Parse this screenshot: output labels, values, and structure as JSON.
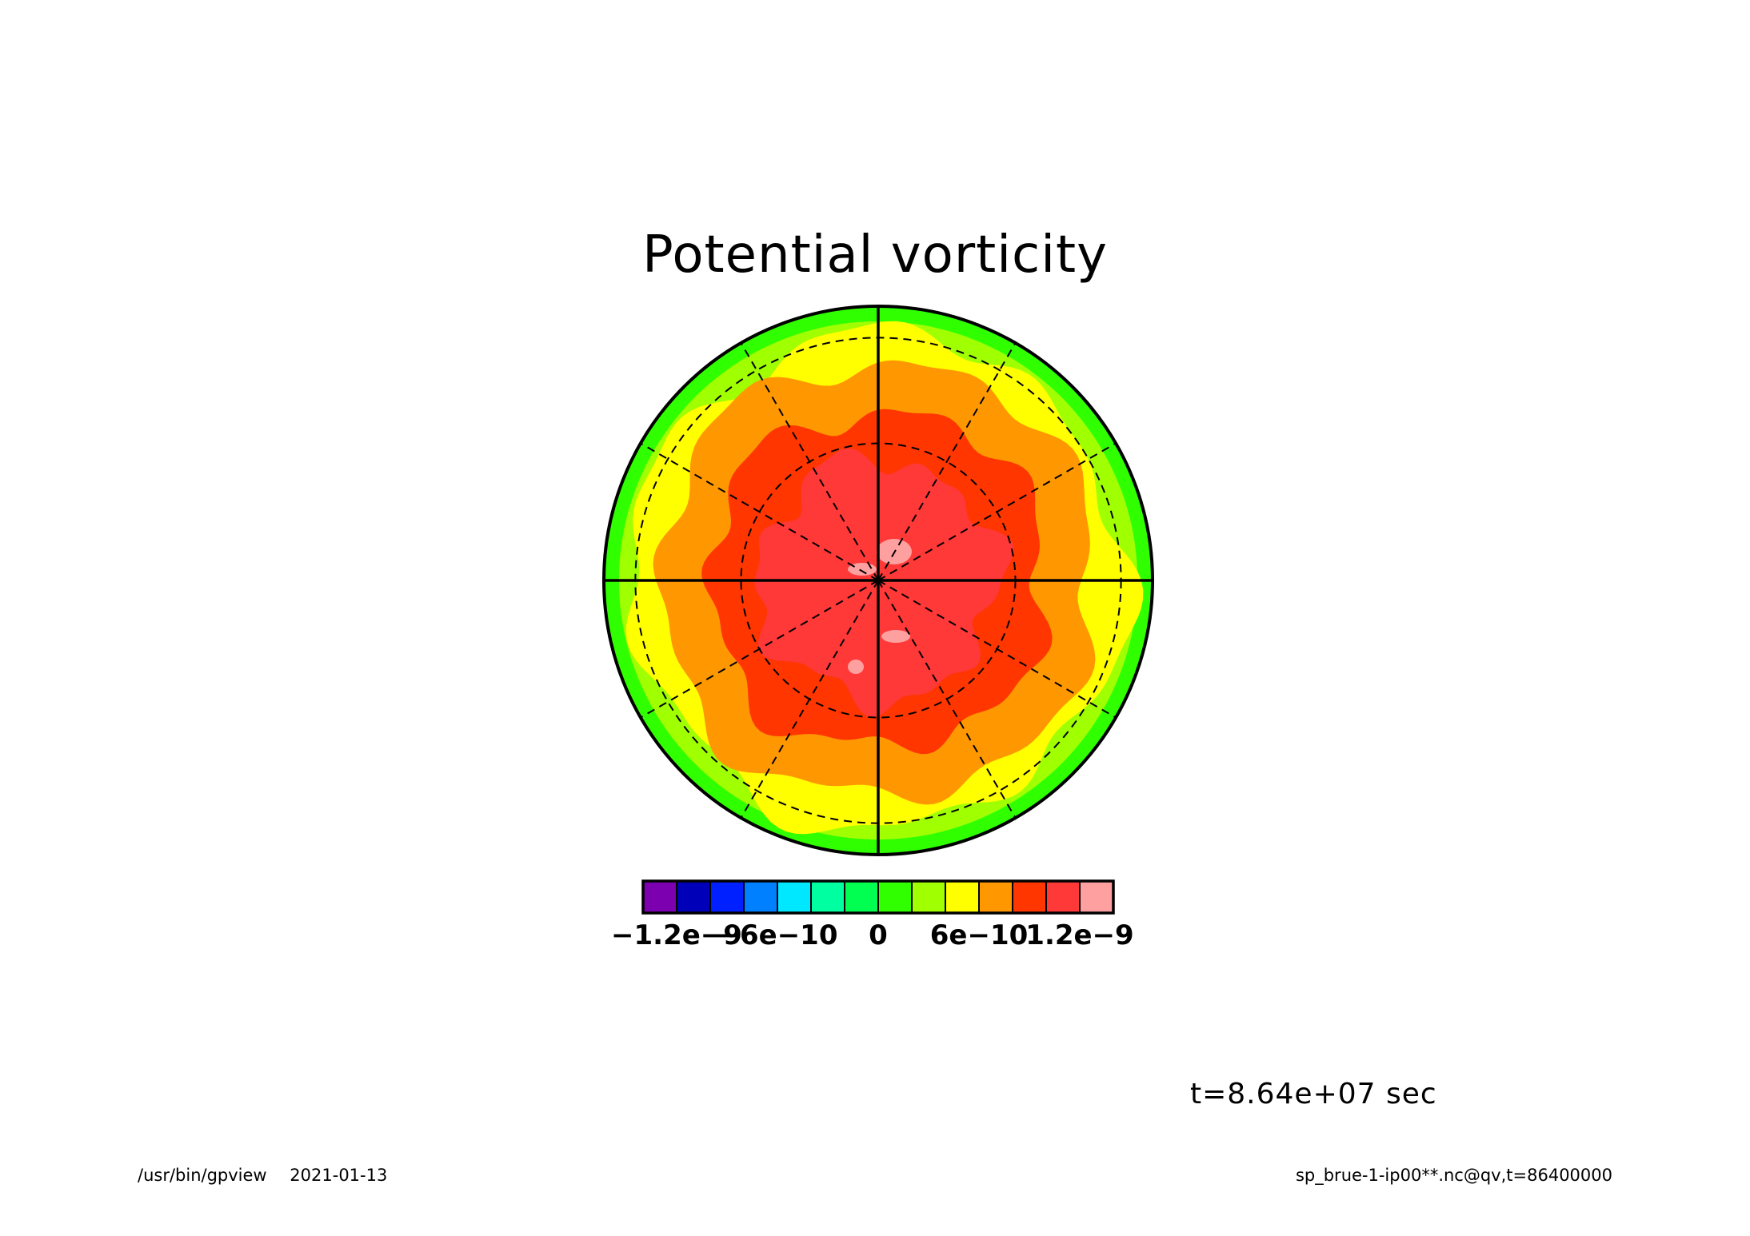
{
  "figure": {
    "title": "Potential vorticity",
    "time_label": "t=8.64e+07 sec",
    "footer_program": "/usr/bin/gpview",
    "footer_date": "2021-01-13",
    "footer_source": "sp_brue-1-ip00**.nc@qv,t=86400000"
  },
  "chart_data": {
    "type": "heatmap",
    "projection": "polar stereographic (north pole centred)",
    "title": "Potential vorticity",
    "units": "",
    "field_description": "Filled contours of potential vorticity; values highest near pole, decreasing outward",
    "radial_bands": [
      {
        "from_center": "pole region",
        "level_index": 12,
        "range": [
          1.2e-09,
          1.4e-09
        ]
      },
      {
        "from_center": "inner",
        "level_index": 11,
        "range": [
          1e-09,
          1.2e-09
        ]
      },
      {
        "from_center": "middle",
        "level_index": 10,
        "range": [
          8e-10,
          1e-09
        ]
      },
      {
        "from_center": "outer",
        "level_index": 9,
        "range": [
          6e-10,
          8e-10
        ]
      },
      {
        "from_center": "rim",
        "level_index": 8,
        "range": [
          4e-10,
          6e-10
        ]
      },
      {
        "from_center": "edge",
        "level_index": 7,
        "range": [
          2e-10,
          4e-10
        ]
      }
    ],
    "colorbar": {
      "levels": [
        -1.4e-09,
        -1.2e-09,
        -1e-09,
        -8e-10,
        -6e-10,
        -4e-10,
        -2e-10,
        0,
        2e-10,
        4e-10,
        6e-10,
        8e-10,
        1e-09,
        1.2e-09,
        1.4e-09
      ],
      "colors": [
        "#7d00b0",
        "#0000b8",
        "#0020ff",
        "#0080ff",
        "#00e8ff",
        "#00ffa0",
        "#00ff50",
        "#30ff00",
        "#a0ff00",
        "#ffff00",
        "#ff9800",
        "#ff3600",
        "#ff3838",
        "#ffa0a0"
      ],
      "tick_labels": [
        "−1.2e−9",
        "−6e−10",
        "0",
        "6e−10",
        "1.2e−9"
      ],
      "tick_values": [
        -1.2e-09,
        -6e-10,
        0,
        6e-10,
        1.2e-09
      ]
    },
    "grid": {
      "meridian_spacing_deg": 30,
      "latitude_circles": "dashed",
      "solid_axes": "0/90/180/270"
    }
  }
}
